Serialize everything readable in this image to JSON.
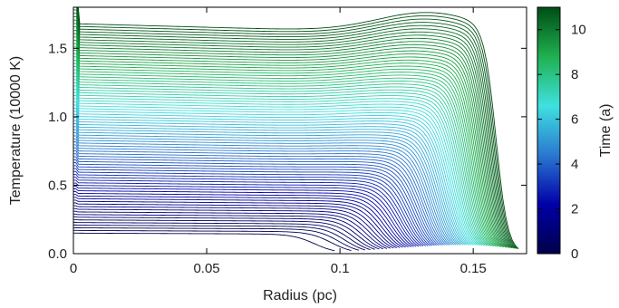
{
  "chart_data": {
    "type": "line",
    "title": "",
    "xlabel": "Radius (pc)",
    "ylabel": "Temperature (10000 K)",
    "xlim": [
      0,
      0.17
    ],
    "ylim": [
      0,
      1.8
    ],
    "x_ticks": [
      0,
      0.05,
      0.1,
      0.15
    ],
    "x_tick_labels": [
      "0",
      "0.05",
      "0.1",
      "0.15"
    ],
    "y_ticks": [
      0,
      0.5,
      1.0,
      1.5
    ],
    "y_tick_labels": [
      "0.0",
      "0.5",
      "1.0",
      "1.5"
    ],
    "grid": false,
    "curve_count": 80,
    "time_range": [
      0,
      11
    ],
    "front_radius_range": [
      0.092,
      0.161
    ],
    "plateau_temperature_range": [
      0.15,
      1.68
    ],
    "colorbar": {
      "label": "Time (a)",
      "range": [
        0,
        11
      ],
      "ticks": [
        0,
        2,
        4,
        6,
        8,
        10
      ],
      "tick_labels": [
        "0",
        "2",
        "4",
        "6",
        "8",
        "10"
      ],
      "color_stops": [
        "#00004a",
        "#0000a8",
        "#2a78d0",
        "#40e0e0",
        "#1fb050",
        "#004d14"
      ]
    },
    "colors": {
      "frame": "#000000",
      "background": "#ffffff"
    }
  }
}
